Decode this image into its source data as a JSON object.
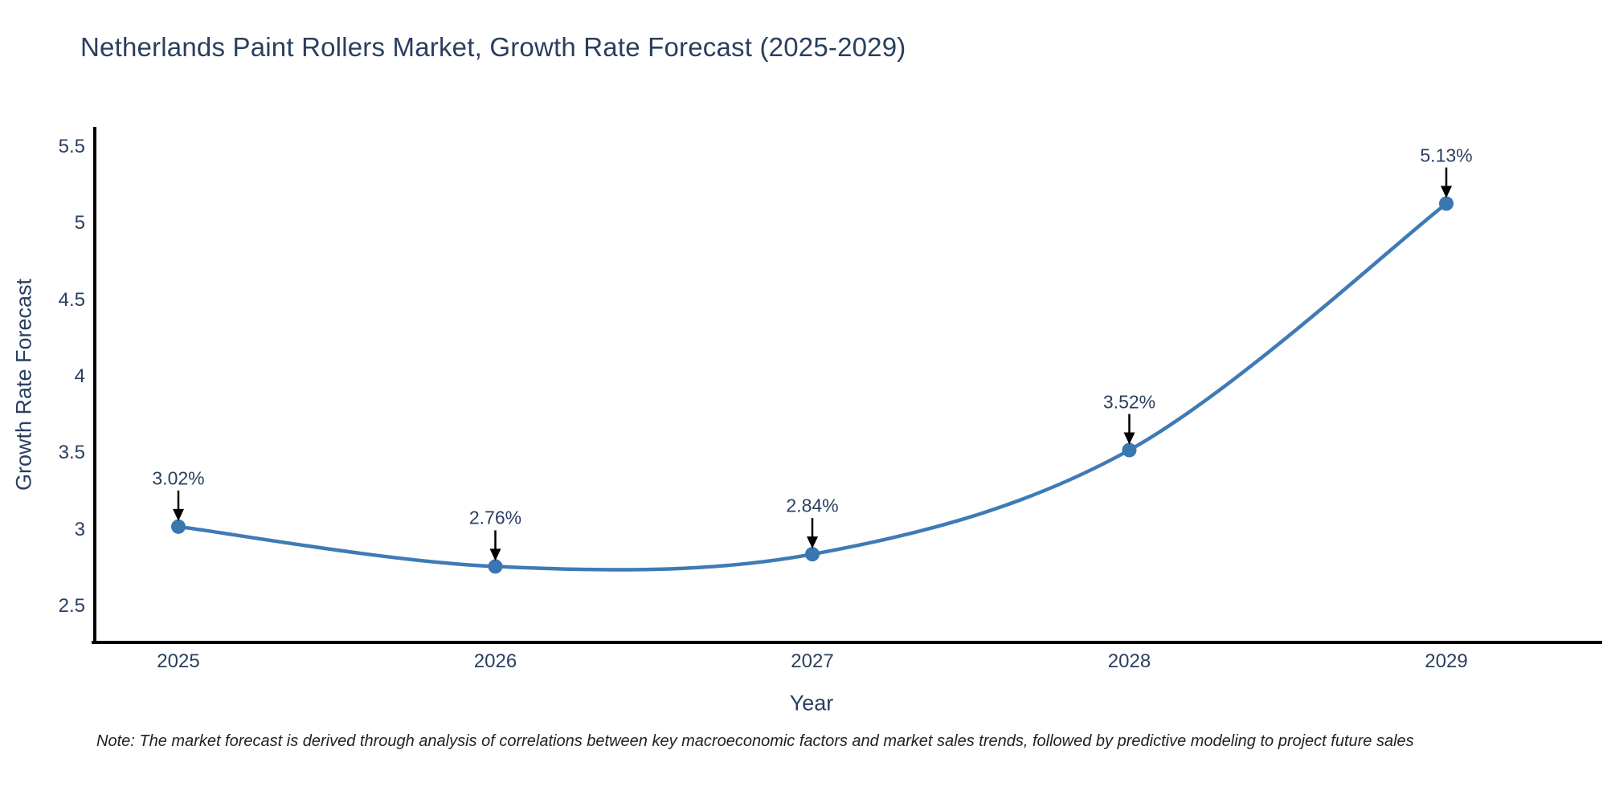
{
  "chart": {
    "title": "Netherlands Paint Rollers Market, Growth Rate Forecast (2025-2029)",
    "note": "Note: The market forecast is derived through analysis of correlations between key macroeconomic factors and market sales trends, followed by predictive modeling to project future sales",
    "xlabel": "Year",
    "ylabel": "Growth Rate Forecast"
  },
  "chart_data": {
    "type": "line",
    "title": "Netherlands Paint Rollers Market, Growth Rate Forecast (2025-2029)",
    "xlabel": "Year",
    "ylabel": "Growth Rate Forecast",
    "categories": [
      "2025",
      "2026",
      "2027",
      "2028",
      "2029"
    ],
    "values": [
      3.02,
      2.76,
      2.84,
      3.52,
      5.13
    ],
    "point_labels": [
      "3.02%",
      "2.76%",
      "2.84%",
      "3.52%",
      "5.13%"
    ],
    "yticks": [
      2.5,
      3,
      3.5,
      4,
      4.5,
      5,
      5.5
    ],
    "ylim": [
      2.28,
      5.62
    ],
    "line_shape": "spline",
    "grid": false,
    "legend": "none",
    "colors": {
      "line": "#3e7bb6",
      "marker": "#3a76b2",
      "axis": "#000000",
      "text": "#2a3f5f",
      "note_text": "#222222",
      "annotation_arrow": "#000000"
    }
  }
}
